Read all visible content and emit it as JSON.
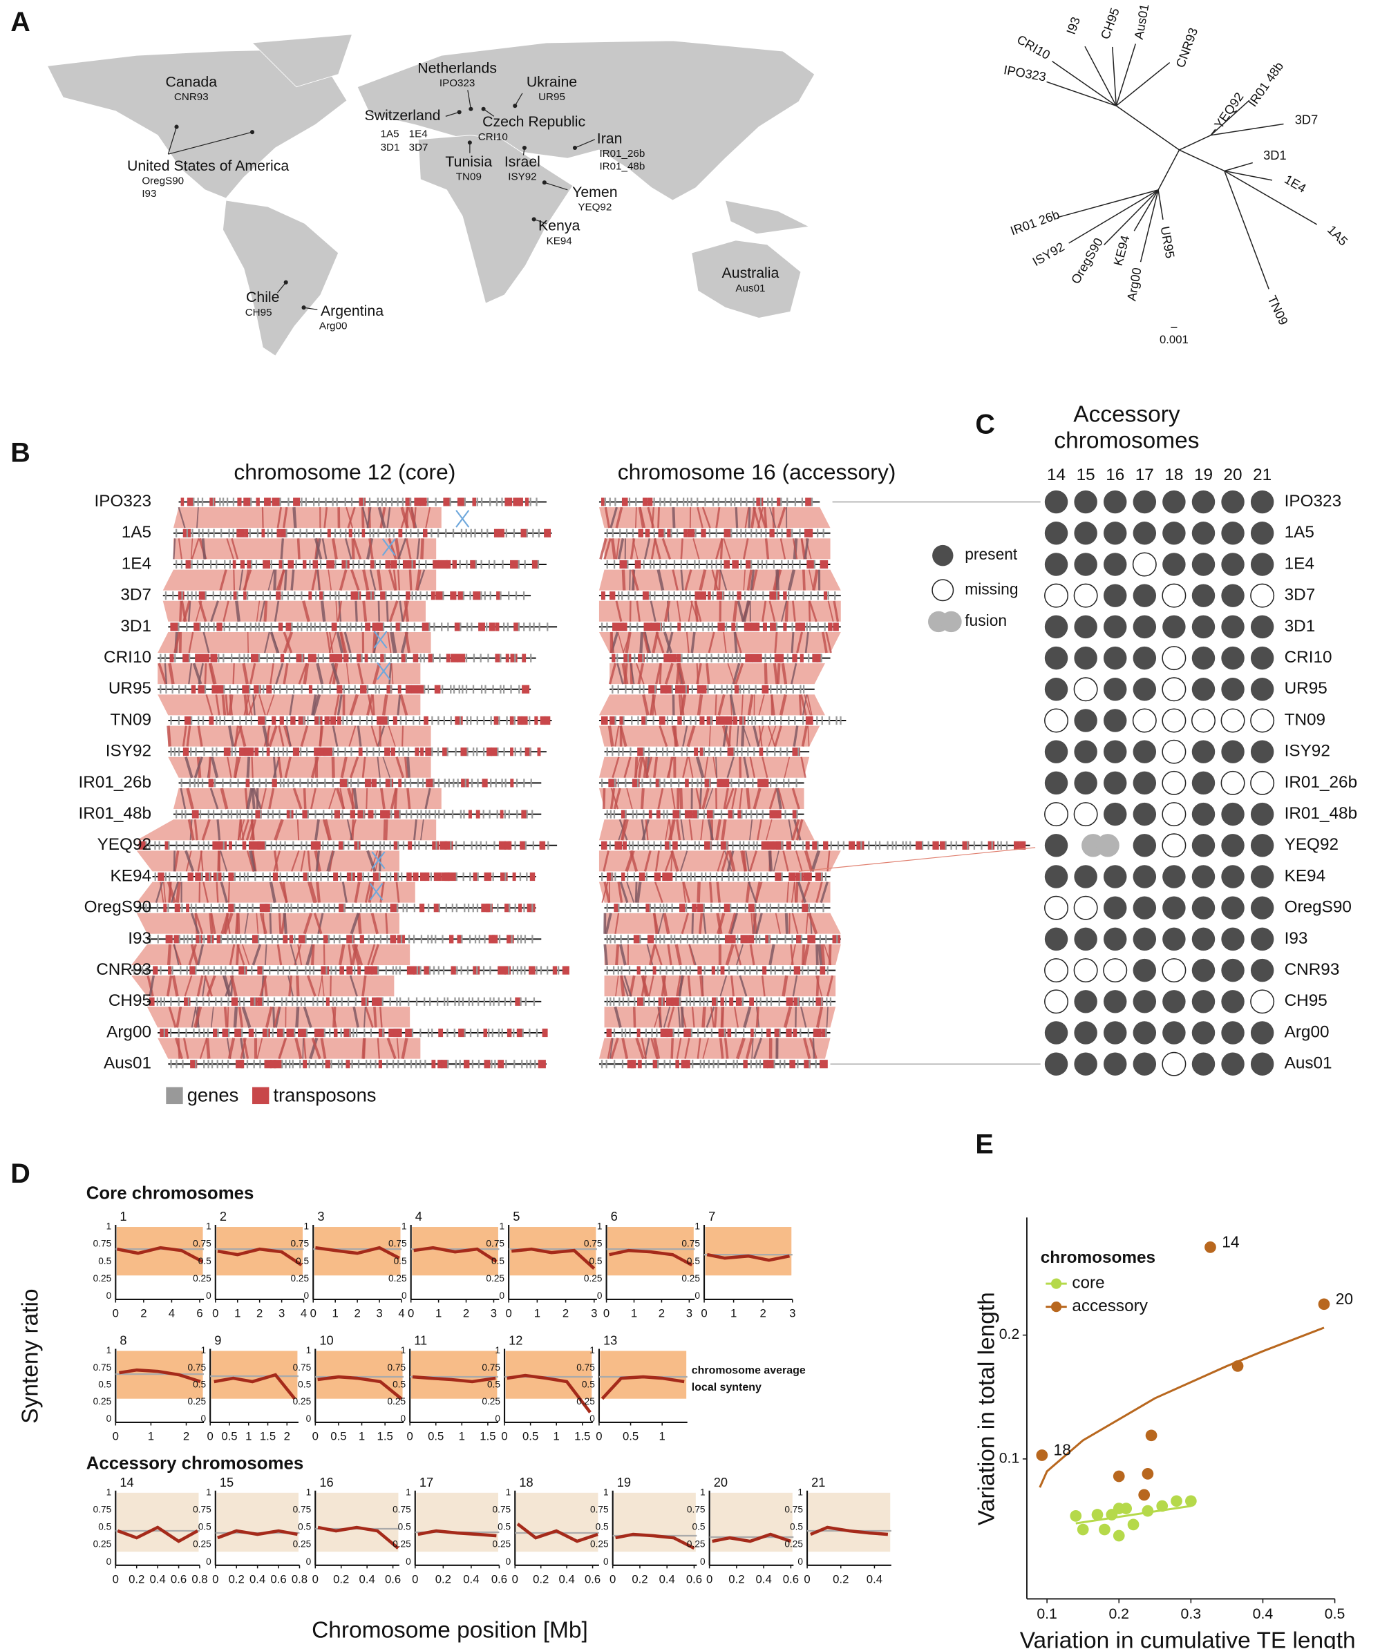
{
  "panel_labels": [
    "A",
    "B",
    "C",
    "D",
    "E"
  ],
  "map": {
    "locations": [
      {
        "country": "Canada",
        "strains": [
          "CNR93"
        ],
        "color": "#b8862e"
      },
      {
        "country": "United States of America",
        "strains": [
          "OregS90",
          "I93"
        ],
        "color": "#b8862e"
      },
      {
        "country": "Netherlands",
        "strains": [
          "IPO323"
        ],
        "color": "#111111"
      },
      {
        "country": "Ukraine",
        "strains": [
          "UR95"
        ],
        "color": "#111111"
      },
      {
        "country": "Switzerland",
        "strains": [
          "1A5",
          "1E4",
          "3D1",
          "3D7"
        ],
        "color": "#111111"
      },
      {
        "country": "Czech Republic",
        "strains": [
          "CRI10"
        ],
        "color": "#111111"
      },
      {
        "country": "Tunisia",
        "strains": [
          "TN09"
        ],
        "color": "#3b3b8f"
      },
      {
        "country": "Israel",
        "strains": [
          "ISY92"
        ],
        "color": "#3b3b8f"
      },
      {
        "country": "Iran",
        "strains": [
          "IR01_26b",
          "IR01_48b"
        ],
        "color": "#3b3b8f"
      },
      {
        "country": "Yemen",
        "strains": [
          "YEQ92"
        ],
        "color": "#3b3b8f"
      },
      {
        "country": "Kenya",
        "strains": [
          "KE94"
        ],
        "color": "#3b3b8f"
      },
      {
        "country": "Australia",
        "strains": [
          "Aus01"
        ],
        "color": "#b22222"
      },
      {
        "country": "Chile",
        "strains": [
          "CH95"
        ],
        "color": "#1a9c3a"
      },
      {
        "country": "Argentina",
        "strains": [
          "Arg00"
        ],
        "color": "#1a9c3a"
      }
    ]
  },
  "tree": {
    "scale": "0.001",
    "tips": [
      {
        "label": "CRI10",
        "color": "#111111"
      },
      {
        "label": "IPO323",
        "color": "#111111"
      },
      {
        "label": "I93",
        "color": "#b8862e"
      },
      {
        "label": "CH95",
        "color": "#1a9c3a"
      },
      {
        "label": "Aus01",
        "color": "#d07070"
      },
      {
        "label": "CNR93",
        "color": "#b8862e"
      },
      {
        "label": "YEQ92",
        "color": "#3b3b8f"
      },
      {
        "label": "IR01 48b",
        "color": "#3b3b8f"
      },
      {
        "label": "3D7",
        "color": "#111111"
      },
      {
        "label": "3D1",
        "color": "#111111"
      },
      {
        "label": "1E4",
        "color": "#111111"
      },
      {
        "label": "1A5",
        "color": "#111111"
      },
      {
        "label": "IR01 26b",
        "color": "#3b3b8f"
      },
      {
        "label": "ISY92",
        "color": "#3b3b8f"
      },
      {
        "label": "OregS90",
        "color": "#b8862e"
      },
      {
        "label": "KE94",
        "color": "#3b3b8f"
      },
      {
        "label": "UR95",
        "color": "#111111"
      },
      {
        "label": "Arg00",
        "color": "#1a9c3a"
      },
      {
        "label": "TN09",
        "color": "#3b3b8f"
      }
    ]
  },
  "synteny": {
    "titles": [
      "chromosome 12 (core)",
      "chromosome 16 (accessory)"
    ],
    "legend": [
      "genes",
      "transposons"
    ],
    "legend_colors": [
      "#999999",
      "#c8474a"
    ]
  },
  "strains": [
    {
      "name": "IPO323",
      "color": "#111111"
    },
    {
      "name": "1A5",
      "color": "#111111"
    },
    {
      "name": "1E4",
      "color": "#111111"
    },
    {
      "name": "3D7",
      "color": "#111111"
    },
    {
      "name": "3D1",
      "color": "#111111"
    },
    {
      "name": "CRI10",
      "color": "#111111"
    },
    {
      "name": "UR95",
      "color": "#111111"
    },
    {
      "name": "TN09",
      "color": "#3b3b8f"
    },
    {
      "name": "ISY92",
      "color": "#3b3b8f"
    },
    {
      "name": "IR01_26b",
      "color": "#3b3b8f"
    },
    {
      "name": "IR01_48b",
      "color": "#3b3b8f"
    },
    {
      "name": "YEQ92",
      "color": "#3b3b8f"
    },
    {
      "name": "KE94",
      "color": "#3b3b8f"
    },
    {
      "name": "OregS90",
      "color": "#b8862e"
    },
    {
      "name": "I93",
      "color": "#b8862e"
    },
    {
      "name": "CNR93",
      "color": "#b8862e"
    },
    {
      "name": "CH95",
      "color": "#1a9c3a"
    },
    {
      "name": "Arg00",
      "color": "#1a9c3a"
    },
    {
      "name": "Aus01",
      "color": "#b22222"
    }
  ],
  "presence": {
    "title_lines": [
      "Accessory",
      "chromosomes"
    ],
    "chromosomes": [
      14,
      15,
      16,
      17,
      18,
      19,
      20,
      21
    ],
    "legend": [
      "present",
      "missing",
      "fusion"
    ],
    "states": [
      [
        0,
        0,
        0,
        0,
        0,
        0,
        0,
        0
      ],
      [
        0,
        0,
        0,
        0,
        0,
        0,
        0,
        0
      ],
      [
        0,
        0,
        0,
        1,
        0,
        0,
        0,
        0
      ],
      [
        1,
        1,
        0,
        0,
        1,
        0,
        0,
        1
      ],
      [
        0,
        0,
        0,
        0,
        0,
        0,
        0,
        0
      ],
      [
        0,
        0,
        0,
        0,
        1,
        0,
        0,
        0
      ],
      [
        0,
        1,
        0,
        0,
        1,
        0,
        0,
        0
      ],
      [
        1,
        0,
        0,
        1,
        1,
        1,
        1,
        1
      ],
      [
        0,
        0,
        0,
        0,
        1,
        0,
        0,
        0
      ],
      [
        0,
        0,
        0,
        0,
        1,
        0,
        1,
        1
      ],
      [
        1,
        1,
        0,
        0,
        1,
        0,
        0,
        0
      ],
      [
        0,
        2,
        2,
        0,
        1,
        0,
        0,
        0
      ],
      [
        0,
        0,
        0,
        0,
        0,
        0,
        0,
        0
      ],
      [
        1,
        1,
        0,
        0,
        0,
        0,
        0,
        0
      ],
      [
        0,
        0,
        0,
        0,
        0,
        0,
        0,
        0
      ],
      [
        1,
        1,
        1,
        0,
        1,
        0,
        0,
        0
      ],
      [
        1,
        0,
        0,
        0,
        0,
        0,
        0,
        1
      ],
      [
        0,
        0,
        0,
        0,
        0,
        0,
        0,
        0
      ],
      [
        0,
        0,
        0,
        0,
        1,
        0,
        0,
        0
      ]
    ]
  },
  "synteny_ratio": {
    "section_titles": [
      "Core chromosomes",
      "Accessory chromosomes"
    ],
    "ylabel": "Synteny ratio",
    "xlabel": "Chromosome position [Mb]",
    "ylim": [
      0,
      1
    ],
    "yticks": [
      0,
      0.25,
      0.5,
      0.75,
      1
    ],
    "legend": [
      "chromosome average",
      "local synteny"
    ],
    "legend_colors": [
      "#aaaaaa",
      "#a52a1a"
    ],
    "core": [
      {
        "chromosome": 1,
        "xlim": [
          0,
          6.3
        ],
        "xticks": [
          0,
          2,
          4,
          6
        ],
        "average": 0.68,
        "local_x": [
          0.1,
          1.6,
          3.2,
          4.7,
          6.2
        ],
        "local_y": [
          0.68,
          0.62,
          0.7,
          0.66,
          0.5
        ]
      },
      {
        "chromosome": 2,
        "xlim": [
          0,
          4
        ],
        "xticks": [
          0,
          1,
          2,
          3,
          4
        ],
        "average": 0.68,
        "local_x": [
          0.1,
          1,
          2,
          3,
          3.9
        ],
        "local_y": [
          0.65,
          0.6,
          0.68,
          0.64,
          0.45
        ]
      },
      {
        "chromosome": 3,
        "xlim": [
          0,
          4
        ],
        "xticks": [
          0,
          1,
          2,
          3,
          4
        ],
        "average": 0.68,
        "local_x": [
          0.1,
          1,
          2,
          3,
          3.9
        ],
        "local_y": [
          0.7,
          0.66,
          0.62,
          0.7,
          0.55
        ]
      },
      {
        "chromosome": 4,
        "xlim": [
          0,
          3.2
        ],
        "xticks": [
          0,
          1,
          2,
          3
        ],
        "average": 0.68,
        "local_x": [
          0.1,
          0.8,
          1.6,
          2.4,
          3.1
        ],
        "local_y": [
          0.66,
          0.7,
          0.64,
          0.68,
          0.5
        ]
      },
      {
        "chromosome": 5,
        "xlim": [
          0,
          3.1
        ],
        "xticks": [
          0,
          1,
          2,
          3
        ],
        "average": 0.68,
        "local_x": [
          0.1,
          0.8,
          1.5,
          2.3,
          3
        ],
        "local_y": [
          0.65,
          0.68,
          0.63,
          0.66,
          0.4
        ]
      },
      {
        "chromosome": 6,
        "xlim": [
          0,
          3.2
        ],
        "xticks": [
          0,
          1,
          2,
          3
        ],
        "average": 0.68,
        "local_x": [
          0.1,
          0.8,
          1.6,
          2.4,
          3.1
        ],
        "local_y": [
          0.6,
          0.66,
          0.64,
          0.6,
          0.45
        ]
      },
      {
        "chromosome": 7,
        "xlim": [
          0,
          3
        ],
        "xticks": [
          0,
          1,
          2,
          3
        ],
        "average": 0.6,
        "local_x": [
          0.1,
          0.7,
          1.5,
          2.2,
          2.9
        ],
        "local_y": [
          0.6,
          0.55,
          0.58,
          0.52,
          0.58
        ]
      },
      {
        "chromosome": 8,
        "xlim": [
          0,
          2.5
        ],
        "xticks": [
          0,
          1,
          2
        ],
        "average": 0.66,
        "local_x": [
          0.1,
          0.6,
          1.2,
          1.8,
          2.4
        ],
        "local_y": [
          0.68,
          0.72,
          0.7,
          0.65,
          0.55
        ]
      },
      {
        "chromosome": 9,
        "xlim": [
          0,
          2.3
        ],
        "xticks": [
          0,
          0.5,
          1,
          1.5,
          2
        ],
        "average": 0.63,
        "local_x": [
          0.1,
          0.6,
          1.1,
          1.7,
          2.2
        ],
        "local_y": [
          0.55,
          0.6,
          0.55,
          0.65,
          0.3
        ]
      },
      {
        "chromosome": 10,
        "xlim": [
          0,
          1.9
        ],
        "xticks": [
          0,
          0.5,
          1,
          1.5
        ],
        "average": 0.62,
        "local_x": [
          0.05,
          0.5,
          0.9,
          1.4,
          1.85
        ],
        "local_y": [
          0.58,
          0.62,
          0.6,
          0.55,
          0.3
        ]
      },
      {
        "chromosome": 11,
        "xlim": [
          0,
          1.7
        ],
        "xticks": [
          0,
          0.5,
          1,
          1.5
        ],
        "average": 0.62,
        "local_x": [
          0.05,
          0.4,
          0.8,
          1.2,
          1.65
        ],
        "local_y": [
          0.62,
          0.6,
          0.58,
          0.55,
          0.6
        ]
      },
      {
        "chromosome": 12,
        "xlim": [
          0,
          1.7
        ],
        "xticks": [
          0,
          0.5,
          1,
          1.5
        ],
        "average": 0.62,
        "local_x": [
          0.05,
          0.4,
          0.8,
          1.2,
          1.65
        ],
        "local_y": [
          0.6,
          0.64,
          0.6,
          0.55,
          0.1
        ]
      },
      {
        "chromosome": 13,
        "xlim": [
          0,
          1.4
        ],
        "xticks": [
          0,
          0.5,
          1
        ],
        "average": 0.62,
        "local_x": [
          0.05,
          0.35,
          0.7,
          1,
          1.35
        ],
        "local_y": [
          0.3,
          0.6,
          0.62,
          0.6,
          0.55
        ]
      }
    ],
    "accessory": [
      {
        "chromosome": 14,
        "xlim": [
          0,
          0.8
        ],
        "xticks": [
          0,
          0.2,
          0.4,
          0.6,
          0.8
        ],
        "average": 0.45,
        "local_x": [
          0.02,
          0.2,
          0.4,
          0.6,
          0.78
        ],
        "local_y": [
          0.45,
          0.35,
          0.5,
          0.3,
          0.45
        ]
      },
      {
        "chromosome": 15,
        "xlim": [
          0,
          0.8
        ],
        "xticks": [
          0,
          0.2,
          0.4,
          0.6,
          0.8
        ],
        "average": 0.42,
        "local_x": [
          0.02,
          0.2,
          0.4,
          0.6,
          0.78
        ],
        "local_y": [
          0.35,
          0.45,
          0.4,
          0.45,
          0.4
        ]
      },
      {
        "chromosome": 16,
        "xlim": [
          0,
          0.65
        ],
        "xticks": [
          0,
          0.2,
          0.4,
          0.6
        ],
        "average": 0.48,
        "local_x": [
          0.02,
          0.16,
          0.32,
          0.48,
          0.64
        ],
        "local_y": [
          0.5,
          0.45,
          0.5,
          0.45,
          0.2
        ]
      },
      {
        "chromosome": 17,
        "xlim": [
          0,
          0.6
        ],
        "xticks": [
          0,
          0.2,
          0.4,
          0.6
        ],
        "average": 0.43,
        "local_x": [
          0.02,
          0.15,
          0.3,
          0.45,
          0.58
        ],
        "local_y": [
          0.4,
          0.45,
          0.42,
          0.4,
          0.38
        ]
      },
      {
        "chromosome": 18,
        "xlim": [
          0,
          0.65
        ],
        "xticks": [
          0,
          0.2,
          0.4,
          0.6
        ],
        "average": 0.42,
        "local_x": [
          0.02,
          0.16,
          0.32,
          0.48,
          0.64
        ],
        "local_y": [
          0.55,
          0.35,
          0.45,
          0.3,
          0.4
        ]
      },
      {
        "chromosome": 19,
        "xlim": [
          0,
          0.62
        ],
        "xticks": [
          0,
          0.2,
          0.4,
          0.6
        ],
        "average": 0.38,
        "local_x": [
          0.02,
          0.15,
          0.3,
          0.45,
          0.6
        ],
        "local_y": [
          0.35,
          0.4,
          0.38,
          0.35,
          0.2
        ]
      },
      {
        "chromosome": 20,
        "xlim": [
          0,
          0.62
        ],
        "xticks": [
          0,
          0.2,
          0.4,
          0.6
        ],
        "average": 0.36,
        "local_x": [
          0.02,
          0.15,
          0.3,
          0.45,
          0.6
        ],
        "local_y": [
          0.3,
          0.35,
          0.3,
          0.4,
          0.3
        ]
      },
      {
        "chromosome": 21,
        "xlim": [
          0,
          0.5
        ],
        "xticks": [
          0,
          0.2,
          0.4
        ],
        "average": 0.45,
        "local_x": [
          0.02,
          0.12,
          0.25,
          0.37,
          0.48
        ],
        "local_y": [
          0.4,
          0.5,
          0.45,
          0.42,
          0.4
        ]
      }
    ]
  },
  "scatter": {
    "type": "scatter",
    "xlabel": "Variation in cumulative TE length",
    "ylabel": "Variation in total length",
    "xlim": [
      0.072,
      0.5
    ],
    "ylim": [
      -0.013,
      0.295
    ],
    "xticks": [
      0.1,
      0.2,
      0.3,
      0.4,
      0.5
    ],
    "yticks": [
      0.1,
      0.2
    ],
    "legend_title": "chromosomes",
    "series": [
      {
        "name": "core",
        "color": "#b5d94a",
        "x": [
          0.14,
          0.15,
          0.17,
          0.18,
          0.19,
          0.2,
          0.2,
          0.21,
          0.22,
          0.24,
          0.26,
          0.28,
          0.3
        ],
        "values": [
          0.054,
          0.043,
          0.055,
          0.043,
          0.055,
          0.06,
          0.038,
          0.06,
          0.047,
          0.058,
          0.062,
          0.066,
          0.066
        ],
        "fit_x": [
          0.14,
          0.3
        ],
        "fit_y": [
          0.048,
          0.062
        ]
      },
      {
        "name": "accessory",
        "color": "#b8671e",
        "x": [
          0.327,
          0.485,
          0.093,
          0.365,
          0.245,
          0.24,
          0.2,
          0.235
        ],
        "values": [
          0.271,
          0.225,
          0.103,
          0.175,
          0.119,
          0.088,
          0.086,
          0.071
        ],
        "point_labels": [
          14,
          20,
          18,
          null,
          null,
          null,
          null,
          null
        ],
        "fit_x": [
          0.09,
          0.1,
          0.15,
          0.2,
          0.25,
          0.3,
          0.35,
          0.4,
          0.485
        ],
        "fit_y": [
          0.077,
          0.09,
          0.115,
          0.132,
          0.149,
          0.162,
          0.175,
          0.187,
          0.206
        ]
      }
    ]
  }
}
